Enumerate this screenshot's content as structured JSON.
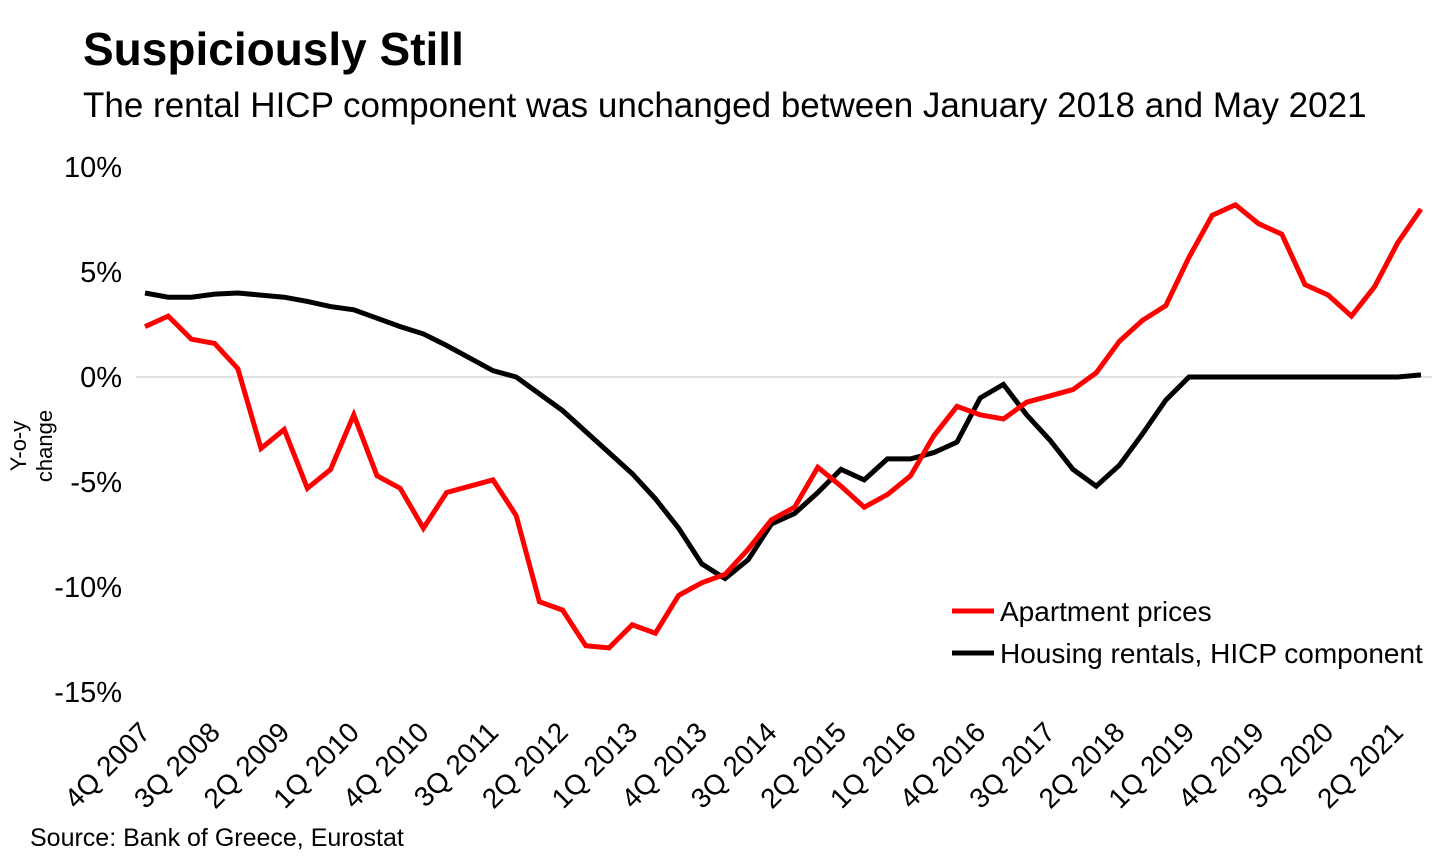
{
  "header": {
    "title": "Suspiciously Still",
    "subtitle": "The rental HICP component was unchanged between January 2018 and May 2021"
  },
  "footer": {
    "source": "Source: Bank of Greece, Eurostat"
  },
  "colors": {
    "apartment_prices": "#FF0000",
    "housing_rentals": "#000000",
    "gridline": "#D9D9D9",
    "text": "#000000",
    "background": "#FFFFFF"
  },
  "chart_data": {
    "type": "line",
    "title": "Suspiciously Still",
    "subtitle": "The rental HICP component was unchanged between January 2018 and May 2021",
    "xlabel": "",
    "ylabel": "Y-o-y change",
    "y_axis": {
      "unit": "%",
      "range": [
        -15,
        10
      ],
      "gridline_at": 0,
      "ticks": [
        {
          "value": 10,
          "label": "10%"
        },
        {
          "value": 5,
          "label": "5%"
        },
        {
          "value": 0,
          "label": "0%"
        },
        {
          "value": -5,
          "label": "-5%"
        },
        {
          "value": -10,
          "label": "-10%"
        },
        {
          "value": -15,
          "label": "-15%"
        }
      ]
    },
    "categories": [
      "4Q 2007",
      "1Q 2008",
      "2Q 2008",
      "3Q 2008",
      "4Q 2008",
      "1Q 2009",
      "2Q 2009",
      "3Q 2009",
      "4Q 2009",
      "1Q 2010",
      "2Q 2010",
      "3Q 2010",
      "4Q 2010",
      "1Q 2011",
      "2Q 2011",
      "3Q 2011",
      "4Q 2011",
      "1Q 2012",
      "2Q 2012",
      "3Q 2012",
      "4Q 2012",
      "1Q 2013",
      "2Q 2013",
      "3Q 2013",
      "4Q 2013",
      "1Q 2014",
      "2Q 2014",
      "3Q 2014",
      "4Q 2014",
      "1Q 2015",
      "2Q 2015",
      "3Q 2015",
      "4Q 2015",
      "1Q 2016",
      "2Q 2016",
      "3Q 2016",
      "4Q 2016",
      "1Q 2017",
      "2Q 2017",
      "3Q 2017",
      "4Q 2017",
      "1Q 2018",
      "2Q 2018",
      "3Q 2018",
      "4Q 2018",
      "1Q 2019",
      "2Q 2019",
      "3Q 2019",
      "4Q 2019",
      "1Q 2020",
      "2Q 2020",
      "3Q 2020",
      "4Q 2020",
      "1Q 2021",
      "2Q 2021",
      "3Q 2021"
    ],
    "x_tick_labels": [
      {
        "index": 0,
        "label": "4Q 2007"
      },
      {
        "index": 3,
        "label": "3Q 2008"
      },
      {
        "index": 6,
        "label": "2Q 2009"
      },
      {
        "index": 9,
        "label": "1Q 2010"
      },
      {
        "index": 12,
        "label": "4Q 2010"
      },
      {
        "index": 15,
        "label": "3Q 2011"
      },
      {
        "index": 18,
        "label": "2Q 2012"
      },
      {
        "index": 21,
        "label": "1Q 2013"
      },
      {
        "index": 24,
        "label": "4Q 2013"
      },
      {
        "index": 27,
        "label": "3Q 2014"
      },
      {
        "index": 30,
        "label": "2Q 2015"
      },
      {
        "index": 33,
        "label": "1Q 2016"
      },
      {
        "index": 36,
        "label": "4Q 2016"
      },
      {
        "index": 39,
        "label": "3Q 2017"
      },
      {
        "index": 42,
        "label": "2Q 2018"
      },
      {
        "index": 45,
        "label": "1Q 2019"
      },
      {
        "index": 48,
        "label": "4Q 2019"
      },
      {
        "index": 51,
        "label": "3Q 2020"
      },
      {
        "index": 54,
        "label": "2Q 2021"
      }
    ],
    "series": [
      {
        "name": "Apartment prices",
        "color": "#FF0000",
        "values": [
          2.4,
          2.9,
          1.8,
          1.6,
          0.4,
          -3.4,
          -2.5,
          -5.3,
          -4.4,
          -1.8,
          -4.7,
          -5.3,
          -7.2,
          -5.5,
          -5.2,
          -4.9,
          -6.6,
          -10.7,
          -11.1,
          -12.8,
          -12.9,
          -11.8,
          -12.2,
          -10.4,
          -9.8,
          -9.4,
          -8.2,
          -6.8,
          -6.2,
          -4.3,
          -5.2,
          -6.2,
          -5.6,
          -4.7,
          -2.8,
          -1.4,
          -1.8,
          -2.0,
          -1.2,
          -0.9,
          -0.6,
          0.2,
          1.7,
          2.7,
          3.4,
          5.7,
          7.7,
          8.2,
          7.3,
          6.8,
          4.4,
          3.9,
          2.9,
          4.3,
          6.4,
          8.0
        ]
      },
      {
        "name": "Housing rentals, HICP component",
        "color": "#000000",
        "values": [
          4.0,
          3.8,
          3.8,
          3.95,
          4.0,
          3.9,
          3.8,
          3.6,
          3.35,
          3.2,
          2.8,
          2.4,
          2.05,
          1.5,
          0.9,
          0.3,
          0.0,
          -0.8,
          -1.6,
          -2.6,
          -3.6,
          -4.6,
          -5.8,
          -7.2,
          -8.9,
          -9.6,
          -8.7,
          -7.0,
          -6.5,
          -5.5,
          -4.4,
          -4.9,
          -3.9,
          -3.9,
          -3.6,
          -3.1,
          -1.0,
          -0.35,
          -1.8,
          -3.0,
          -4.4,
          -5.2,
          -4.2,
          -2.7,
          -1.1,
          0.0,
          0.0,
          0.0,
          0.0,
          0.0,
          0.0,
          0.0,
          0.0,
          0.0,
          0.0,
          0.1
        ]
      }
    ],
    "legend_position": "inside-lower-right",
    "grid": "horizontal zero line only",
    "source": "Source: Bank of Greece, Eurostat"
  }
}
